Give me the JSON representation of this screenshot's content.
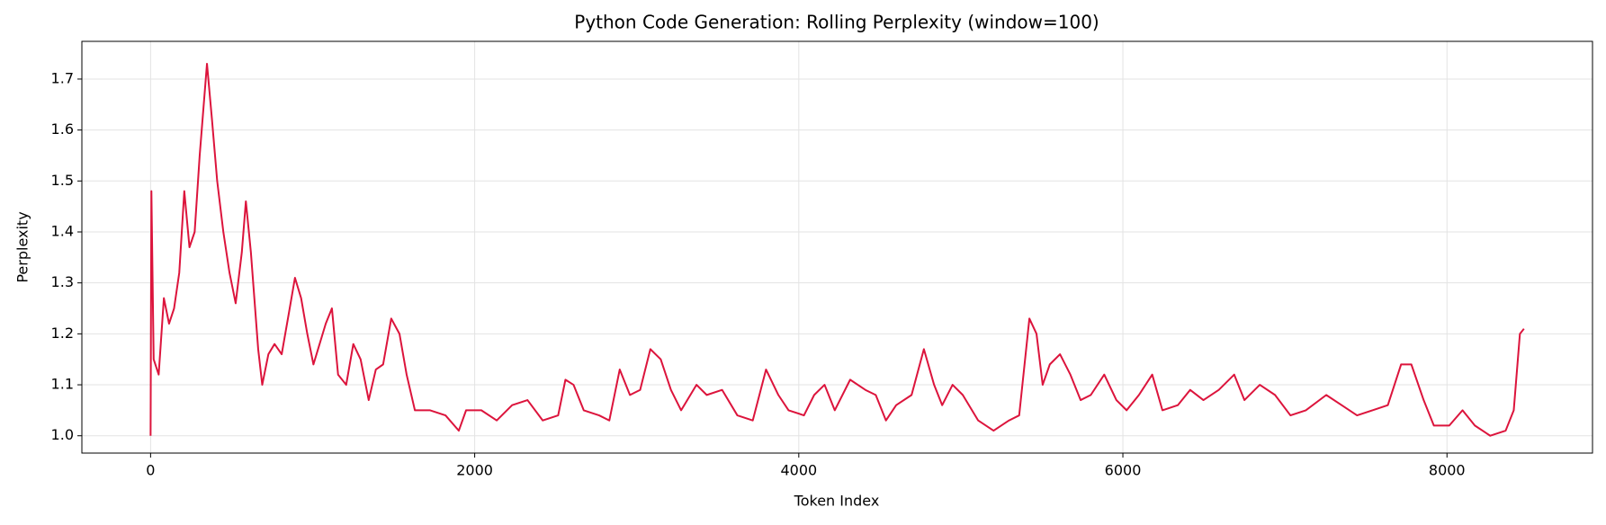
{
  "chart_data": {
    "type": "line",
    "title": "Python Code Generation: Rolling Perplexity (window=100)",
    "x_label": "Token Index",
    "y_label": "Perplexity",
    "color": "#dc143c",
    "grid": true,
    "xlim": [
      -424,
      8898
    ],
    "ylim": [
      0.966,
      1.774
    ],
    "xticks": [
      0,
      2000,
      4000,
      6000,
      8000
    ],
    "yticks": [
      {
        "value": 1,
        "label": "1.0"
      },
      1.1,
      1.2,
      1.3,
      1.4,
      1.5,
      1.6,
      1.7
    ],
    "x": [
      0,
      5,
      19,
      50,
      82,
      114,
      145,
      177,
      208,
      240,
      272,
      303,
      348,
      379,
      411,
      449,
      487,
      525,
      563,
      588,
      619,
      664,
      689,
      727,
      765,
      809,
      853,
      891,
      929,
      967,
      1005,
      1043,
      1081,
      1119,
      1157,
      1207,
      1251,
      1296,
      1346,
      1390,
      1435,
      1485,
      1536,
      1580,
      1631,
      1725,
      1820,
      1902,
      1947,
      2041,
      2136,
      2231,
      2326,
      2420,
      2515,
      2560,
      2610,
      2673,
      2768,
      2831,
      2895,
      2958,
      3021,
      3084,
      3148,
      3211,
      3274,
      3369,
      3432,
      3527,
      3621,
      3716,
      3798,
      3874,
      3937,
      4032,
      4095,
      4159,
      4222,
      4317,
      4411,
      4475,
      4538,
      4601,
      4696,
      4772,
      4835,
      4885,
      4949,
      5012,
      5107,
      5202,
      5297,
      5360,
      5423,
      5467,
      5505,
      5549,
      5612,
      5676,
      5739,
      5802,
      5885,
      5960,
      6023,
      6099,
      6181,
      6244,
      6339,
      6415,
      6497,
      6592,
      6687,
      6750,
      6845,
      6939,
      7034,
      7129,
      7255,
      7350,
      7445,
      7540,
      7635,
      7717,
      7780,
      7856,
      7919,
      8014,
      8096,
      8172,
      8267,
      8362,
      8412,
      8450,
      8475
    ],
    "values": [
      1.0,
      1.48,
      1.15,
      1.12,
      1.27,
      1.22,
      1.25,
      1.32,
      1.48,
      1.37,
      1.4,
      1.55,
      1.73,
      1.62,
      1.5,
      1.4,
      1.32,
      1.26,
      1.36,
      1.46,
      1.36,
      1.17,
      1.1,
      1.16,
      1.18,
      1.16,
      1.24,
      1.31,
      1.27,
      1.2,
      1.14,
      1.18,
      1.22,
      1.25,
      1.12,
      1.1,
      1.18,
      1.15,
      1.07,
      1.13,
      1.14,
      1.23,
      1.2,
      1.12,
      1.05,
      1.05,
      1.04,
      1.01,
      1.05,
      1.05,
      1.03,
      1.06,
      1.07,
      1.03,
      1.04,
      1.11,
      1.1,
      1.05,
      1.04,
      1.03,
      1.13,
      1.08,
      1.09,
      1.17,
      1.15,
      1.09,
      1.05,
      1.1,
      1.08,
      1.09,
      1.04,
      1.03,
      1.13,
      1.08,
      1.05,
      1.04,
      1.08,
      1.1,
      1.05,
      1.11,
      1.09,
      1.08,
      1.03,
      1.06,
      1.08,
      1.17,
      1.1,
      1.06,
      1.1,
      1.08,
      1.03,
      1.01,
      1.03,
      1.04,
      1.23,
      1.2,
      1.1,
      1.14,
      1.16,
      1.12,
      1.07,
      1.08,
      1.12,
      1.07,
      1.05,
      1.08,
      1.12,
      1.05,
      1.06,
      1.09,
      1.07,
      1.09,
      1.12,
      1.07,
      1.1,
      1.08,
      1.04,
      1.05,
      1.08,
      1.06,
      1.04,
      1.05,
      1.06,
      1.14,
      1.14,
      1.07,
      1.02,
      1.02,
      1.05,
      1.02,
      1.0,
      1.01,
      1.05,
      1.2,
      1.21
    ]
  }
}
